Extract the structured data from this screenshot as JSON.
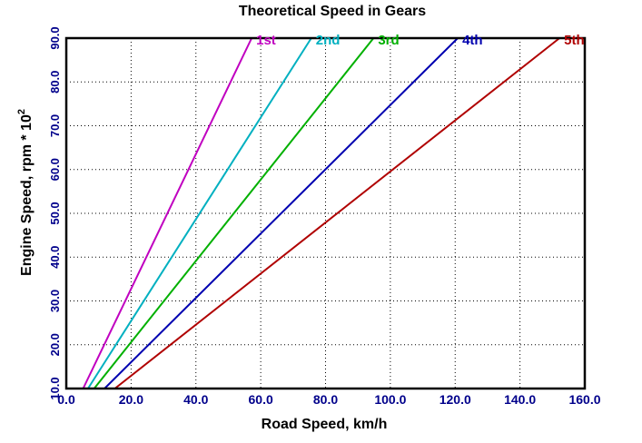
{
  "chart_data": {
    "type": "line",
    "title": "Theoretical Speed in Gears",
    "xlabel": "Road Speed, km/h",
    "ylabel": "Engine Speed, rpm * 10",
    "ylabel_exponent": "2",
    "xlim": [
      0,
      160
    ],
    "ylim": [
      10,
      90
    ],
    "xticks": [
      "0.0",
      "20.0",
      "40.0",
      "60.0",
      "80.0",
      "100.0",
      "120.0",
      "140.0",
      "160.0"
    ],
    "yticks": [
      "10.0",
      "20.0",
      "30.0",
      "40.0",
      "50.0",
      "60.0",
      "70.0",
      "80.0",
      "90.0"
    ],
    "grid": true,
    "colors": {
      "axis_text": "#00008b",
      "axis_label": "#b00000",
      "grid": "#000000"
    },
    "series": [
      {
        "name": "1st",
        "color": "#c000c0",
        "x": [
          5.2,
          57.2
        ],
        "y": [
          10,
          90
        ]
      },
      {
        "name": "2nd",
        "color": "#00b0c0",
        "x": [
          6.7,
          75.6
        ],
        "y": [
          10,
          90
        ]
      },
      {
        "name": "3rd",
        "color": "#00b000",
        "x": [
          8.6,
          94.8
        ],
        "y": [
          10,
          90
        ]
      },
      {
        "name": "4th",
        "color": "#0000b0",
        "x": [
          11.8,
          120.8
        ],
        "y": [
          10,
          90
        ]
      },
      {
        "name": "5th",
        "color": "#b00000",
        "x": [
          15.0,
          152.2
        ],
        "y": [
          10,
          90
        ]
      }
    ]
  }
}
